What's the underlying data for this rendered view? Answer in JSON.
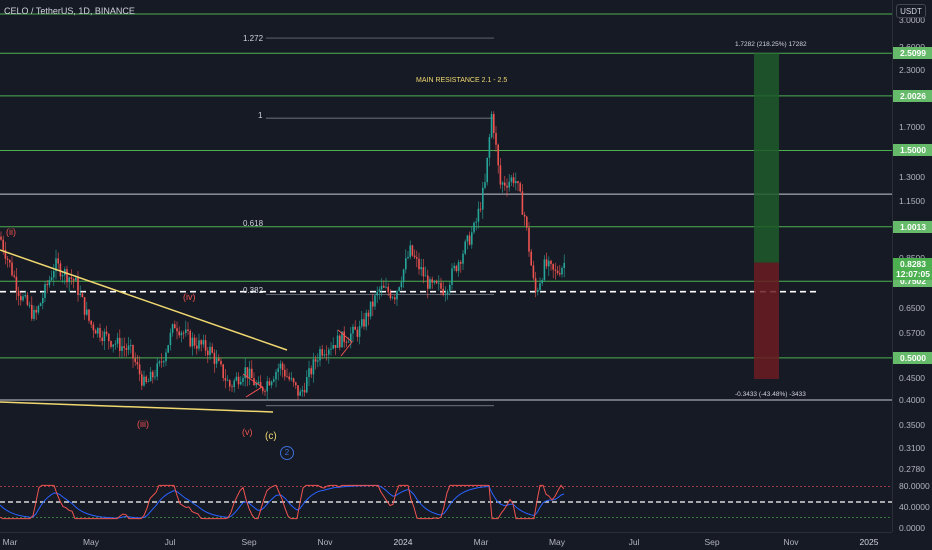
{
  "header": {
    "title": "CELO / TetherUS, 1D, BINANCE",
    "currency": "USDT"
  },
  "price_axis": {
    "ticks": [
      "3.0000",
      "2.6000",
      "2.3000",
      "1.7000",
      "1.3000",
      "1.1500",
      "0.8500",
      "0.6500",
      "0.5700",
      "0.4500",
      "0.4000",
      "0.3500",
      "0.3100",
      "0.2780"
    ],
    "badges": [
      {
        "label": "2.5099",
        "price": 2.5099
      },
      {
        "label": "2.0026",
        "price": 2.0026
      },
      {
        "label": "1.5000",
        "price": 1.5
      },
      {
        "label": "1.0013",
        "price": 1.0013
      },
      {
        "label": "0.7502",
        "price": 0.7502
      },
      {
        "label": "0.5000",
        "price": 0.5
      }
    ],
    "current": {
      "price_label": "0.8283",
      "timer": "12:07:05",
      "price": 0.8283
    }
  },
  "rsi_axis": {
    "ticks": [
      "80.0000",
      "40.0000",
      "0.0000"
    ]
  },
  "time_axis": {
    "ticks": [
      "Mar",
      "May",
      "Jul",
      "Sep",
      "Nov",
      "2024",
      "Mar",
      "May",
      "Jul",
      "Sep",
      "Nov",
      "2025"
    ]
  },
  "annotations": {
    "fib_1272": "1.272",
    "fib_1": "1",
    "fib_0618": "0.618",
    "fib_0382": "0.382",
    "main_resistance": "MAIN RESISTANCE 2.1 - 2.5",
    "target_box": "1.7282 (218.25%) 17282",
    "stop_box": "-0.3433 (-43.48%) -3433",
    "wave_ii": "(ii)",
    "wave_iv": "(iv)",
    "wave_iii": "(iii)",
    "wave_v": "(v)",
    "wave_c": "(c)",
    "wave_2": "2"
  },
  "colors": {
    "background": "#161a25",
    "candle_up": "#26a69a",
    "candle_down": "#ef5350",
    "support_line": "#4caf50",
    "trendline": "#f0d870",
    "rsi_line": "#ef5350",
    "rsi_ma": "#2962ff",
    "target_green": "#1f5c2a",
    "stop_red": "#6b1c22"
  },
  "chart_data": {
    "type": "candlestick",
    "symbol": "CELO / TetherUS",
    "interval": "1D",
    "exchange": "BINANCE",
    "y_scale": "log",
    "ylim": [
      0.27,
      3.2
    ],
    "horizontal_levels": [
      3.09,
      2.5099,
      2.0026,
      1.5,
      1.19,
      1.0013,
      0.7502,
      0.5,
      0.4
    ],
    "current_price": 0.8283
  }
}
